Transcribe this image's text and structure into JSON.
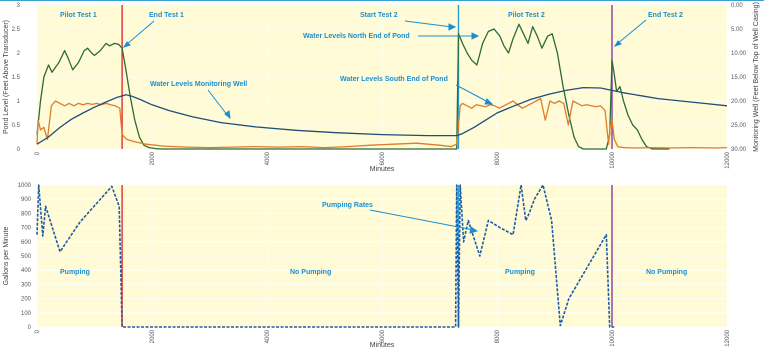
{
  "chart_data": [
    {
      "type": "line",
      "xlabel": "Minutes",
      "ylabel_left": "Pond Level (Feet Above Transducer)",
      "ylabel_right": "Monitoring Well (Feet Below Top of Well Casing)",
      "xlim": [
        0,
        12000
      ],
      "ylim_left": [
        0,
        3
      ],
      "ylim_right": [
        30,
        0
      ],
      "x_ticks": [
        "0",
        "2000",
        "4000",
        "6000",
        "8000",
        "10000",
        "12000"
      ],
      "y_ticks_left": [
        "0",
        "0.5",
        "1",
        "1.5",
        "2",
        "2.5",
        "3"
      ],
      "y_ticks_right": [
        "0.00",
        "5.00",
        "10.00",
        "15.00",
        "20.00",
        "25.00",
        "30.00"
      ],
      "background": "#fffbd6",
      "vlines": [
        {
          "x": 1480,
          "color": "#e03030"
        },
        {
          "x": 7330,
          "color": "#2a9fd6"
        },
        {
          "x": 10000,
          "color": "#8a3aa0"
        }
      ],
      "series": [
        {
          "name": "Water Levels North End of Pond",
          "color": "#2e6b34",
          "axis": "left",
          "x": [
            0,
            60,
            120,
            200,
            260,
            320,
            380,
            480,
            540,
            620,
            720,
            820,
            880,
            950,
            1000,
            1100,
            1200,
            1260,
            1350,
            1420,
            1480,
            1540,
            1620,
            1700,
            1780,
            1860,
            1950,
            2050,
            2150,
            7300,
            7330,
            7400,
            7480,
            7560,
            7650,
            7750,
            7850,
            7950,
            8050,
            8120,
            8200,
            8280,
            8380,
            8460,
            8540,
            8620,
            8700,
            8780,
            8880,
            8960,
            9050,
            9150,
            9250,
            9340,
            9420,
            9500,
            9600,
            9700,
            9800,
            9900,
            9960,
            10000,
            10040,
            10080,
            10140,
            10200,
            10280,
            10360,
            10440,
            10520,
            10600,
            10700,
            10800,
            10900,
            11000
          ],
          "y": [
            0.3,
            1.0,
            1.5,
            1.75,
            1.6,
            1.7,
            1.8,
            2.05,
            1.9,
            1.65,
            1.8,
            2.05,
            2.1,
            2.0,
            1.95,
            2.05,
            2.2,
            2.15,
            2.2,
            2.18,
            2.1,
            1.7,
            1.1,
            0.6,
            0.25,
            0.08,
            0.03,
            0.01,
            0.0,
            0.0,
            2.4,
            2.2,
            2.0,
            1.85,
            1.75,
            2.2,
            2.45,
            2.5,
            2.35,
            2.15,
            2.0,
            2.3,
            2.6,
            2.4,
            2.2,
            2.55,
            2.35,
            2.1,
            2.35,
            2.4,
            2.0,
            1.3,
            0.7,
            0.25,
            0.05,
            0.0,
            0.0,
            0.0,
            0.0,
            0.0,
            0.3,
            1.85,
            1.55,
            1.2,
            1.3,
            1.0,
            0.7,
            0.5,
            0.4,
            0.2,
            0.05,
            0.0,
            0.0,
            0.0,
            0.0
          ]
        },
        {
          "name": "Water Levels South End of Pond",
          "color": "#e07b2a",
          "axis": "left",
          "x": [
            0,
            20,
            60,
            120,
            180,
            250,
            320,
            400,
            480,
            560,
            640,
            720,
            800,
            880,
            960,
            1040,
            1120,
            1200,
            1280,
            1360,
            1440,
            1480,
            1560,
            1700,
            1900,
            2200,
            2600,
            3000,
            3400,
            3800,
            4200,
            4600,
            5000,
            5400,
            5800,
            6200,
            6600,
            6800,
            7000,
            7200,
            7300,
            7330,
            7360,
            7400,
            7480,
            7560,
            7640,
            7720,
            7800,
            7880,
            7960,
            8040,
            8120,
            8200,
            8280,
            8360,
            8440,
            8520,
            8600,
            8680,
            8760,
            8840,
            8920,
            9000,
            9080,
            9160,
            9240,
            9320,
            9400,
            9480,
            9560,
            9640,
            9720,
            9800,
            9880,
            9940,
            9970,
            10000,
            10040,
            10100,
            10200,
            10400,
            10700,
            11000,
            11400,
            11800,
            12000
          ],
          "y": [
            0.1,
            0.6,
            0.4,
            0.45,
            0.2,
            0.9,
            1.0,
            0.95,
            0.9,
            0.95,
            0.9,
            0.95,
            0.92,
            0.95,
            0.93,
            0.95,
            0.92,
            0.95,
            0.92,
            0.9,
            0.85,
            0.3,
            0.2,
            0.15,
            0.1,
            0.06,
            0.04,
            0.03,
            0.04,
            0.05,
            0.04,
            0.05,
            0.03,
            0.05,
            0.08,
            0.1,
            0.12,
            0.1,
            0.08,
            0.05,
            0.1,
            0.5,
            0.9,
            0.95,
            0.9,
            0.85,
            0.92,
            0.9,
            0.88,
            0.92,
            0.9,
            0.85,
            0.9,
            0.95,
            1.0,
            0.92,
            0.85,
            0.9,
            0.95,
            1.0,
            1.05,
            0.6,
            1.0,
            0.95,
            1.0,
            0.95,
            0.5,
            1.0,
            0.95,
            0.9,
            0.92,
            0.9,
            0.88,
            0.9,
            0.8,
            0.1,
            0.5,
            0.6,
            0.2,
            0.05,
            0.03,
            0.02,
            0.03,
            0.02,
            0.03,
            0.02,
            0.03
          ]
        },
        {
          "name": "Water Levels Monitoring Well",
          "color": "#1f4e79",
          "axis": "right",
          "x": [
            0,
            200,
            400,
            600,
            800,
            1000,
            1200,
            1400,
            1550,
            1650,
            1800,
            2000,
            2300,
            2700,
            3200,
            3800,
            4500,
            5200,
            6000,
            6800,
            7300,
            7400,
            7600,
            7800,
            8000,
            8300,
            8600,
            8900,
            9200,
            9500,
            9800,
            10000,
            10200,
            10500,
            10800,
            11200,
            11600,
            12000
          ],
          "y": [
            29.0,
            27.5,
            25.5,
            23.8,
            22.5,
            21.3,
            20.2,
            19.2,
            18.7,
            19.0,
            19.7,
            20.8,
            22.0,
            23.3,
            24.5,
            25.4,
            26.1,
            26.6,
            27.0,
            27.2,
            27.2,
            26.8,
            25.5,
            24.0,
            22.5,
            21.0,
            19.6,
            18.6,
            17.8,
            17.2,
            17.3,
            17.8,
            18.3,
            18.9,
            19.5,
            20.0,
            20.5,
            21.0
          ]
        }
      ],
      "annotations": [
        "Pilot Test 1",
        "End Test 1",
        "Start Test 2",
        "Pilot Test 2",
        "End Test 2",
        "Water Levels North End of Pond",
        "Water Levels Monitoring Well",
        "Water Levels South End of Pond"
      ]
    },
    {
      "type": "line",
      "xlabel": "Minutes",
      "ylabel": "Gallons per Minute",
      "xlim": [
        0,
        12000
      ],
      "ylim": [
        0,
        1000
      ],
      "x_ticks": [
        "0",
        "2000",
        "4000",
        "6000",
        "8000",
        "10000",
        "12000"
      ],
      "y_ticks": [
        "0",
        "100",
        "200",
        "300",
        "400",
        "500",
        "600",
        "700",
        "800",
        "900",
        "1000"
      ],
      "background": "#fffbd6",
      "vlines": [
        {
          "x": 1480,
          "color": "#e03030"
        },
        {
          "x": 7330,
          "color": "#2a9fd6"
        },
        {
          "x": 10000,
          "color": "#8a3aa0"
        }
      ],
      "series": [
        {
          "name": "Pumping Rates",
          "color": "#1f5aa6",
          "style": "dashed",
          "x": [
            0,
            30,
            100,
            150,
            400,
            750,
            1300,
            1430,
            1480,
            1530,
            7280,
            7300,
            7330,
            7360,
            7420,
            7500,
            7700,
            7850,
            8050,
            8280,
            8420,
            8500,
            8560,
            8650,
            8800,
            8950,
            9100,
            9250,
            9900,
            9960,
            10000,
            10040
          ],
          "y": [
            650,
            1000,
            640,
            850,
            530,
            740,
            990,
            850,
            0,
            0,
            0,
            1000,
            0,
            1000,
            600,
            750,
            500,
            750,
            700,
            650,
            1000,
            750,
            800,
            900,
            1000,
            750,
            10,
            200,
            650,
            0,
            0,
            0
          ]
        }
      ],
      "annotations": [
        "Pumping Rates",
        "Pumping",
        "No Pumping",
        "Pumping",
        "No Pumping"
      ]
    }
  ]
}
